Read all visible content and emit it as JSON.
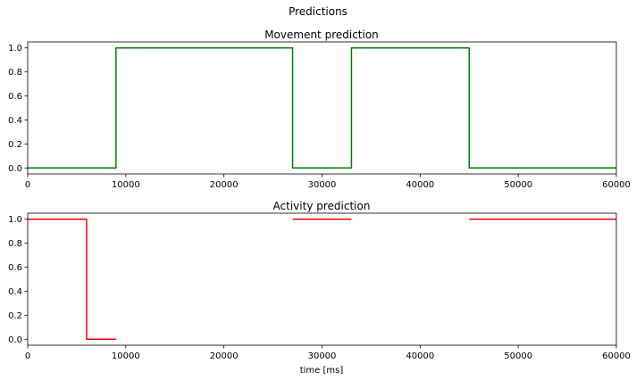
{
  "figure": {
    "suptitle": "Predictions"
  },
  "chart_data": [
    {
      "type": "line",
      "title": "Movement prediction",
      "xlabel": "",
      "ylabel": "",
      "xlim": [
        0,
        60000
      ],
      "ylim": [
        -0.05,
        1.05
      ],
      "xticks": [
        0,
        10000,
        20000,
        30000,
        40000,
        50000,
        60000
      ],
      "xtick_labels": [
        "0",
        "10000",
        "20000",
        "30000",
        "40000",
        "50000",
        "60000"
      ],
      "yticks": [
        0.0,
        0.2,
        0.4,
        0.6,
        0.8,
        1.0
      ],
      "ytick_labels": [
        "0.0",
        "0.2",
        "0.4",
        "0.6",
        "0.8",
        "1.0"
      ],
      "grid": false,
      "color": "#008000",
      "series": [
        {
          "segments": [
            [
              [
                0,
                0
              ],
              [
                9000,
                0
              ],
              [
                9000,
                1
              ],
              [
                27000,
                1
              ],
              [
                27000,
                0
              ],
              [
                33000,
                0
              ],
              [
                33000,
                1
              ],
              [
                45000,
                1
              ],
              [
                45000,
                0
              ],
              [
                60000,
                0
              ]
            ]
          ]
        }
      ]
    },
    {
      "type": "line",
      "title": "Activity prediction",
      "xlabel": "time [ms]",
      "ylabel": "",
      "xlim": [
        0,
        60000
      ],
      "ylim": [
        -0.05,
        1.05
      ],
      "xticks": [
        0,
        10000,
        20000,
        30000,
        40000,
        50000,
        60000
      ],
      "xtick_labels": [
        "0",
        "10000",
        "20000",
        "30000",
        "40000",
        "50000",
        "60000"
      ],
      "yticks": [
        0.0,
        0.2,
        0.4,
        0.6,
        0.8,
        1.0
      ],
      "ytick_labels": [
        "0.0",
        "0.2",
        "0.4",
        "0.6",
        "0.8",
        "1.0"
      ],
      "grid": false,
      "color": "#ff0000",
      "series": [
        {
          "segments": [
            [
              [
                0,
                1
              ],
              [
                6000,
                1
              ],
              [
                6000,
                0
              ],
              [
                9000,
                0
              ]
            ],
            [
              [
                27000,
                1
              ],
              [
                33000,
                1
              ]
            ],
            [
              [
                45000,
                1
              ],
              [
                60000,
                1
              ]
            ]
          ]
        }
      ]
    }
  ]
}
